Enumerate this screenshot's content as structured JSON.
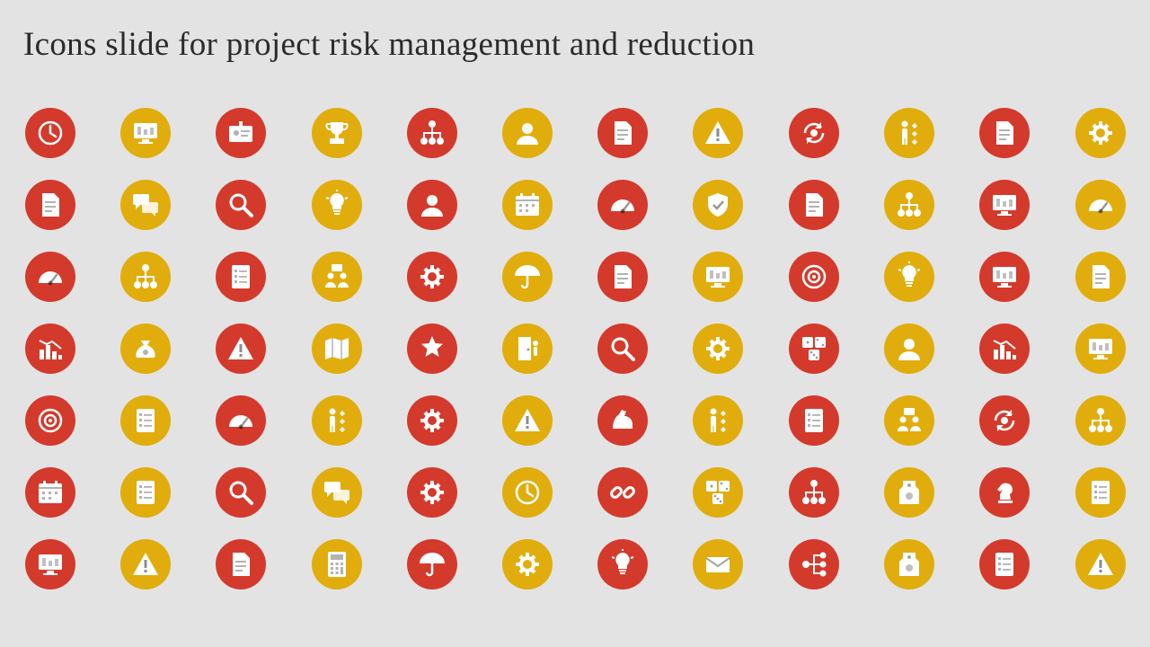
{
  "title": "Icons slide for project risk management and reduction",
  "colors": {
    "background": "#e3e3e3",
    "red": "#d33a2c",
    "yellow": "#e0ad0c",
    "glyph": "#ffffff"
  },
  "icons": [
    {
      "name": "clock-hourglass-icon",
      "color": "red",
      "glyph": "clock"
    },
    {
      "name": "monitor-dollar-chart-icon",
      "color": "yellow",
      "glyph": "monitor"
    },
    {
      "name": "id-card-icon",
      "color": "red",
      "glyph": "card"
    },
    {
      "name": "trophy-podium-icon",
      "color": "yellow",
      "glyph": "trophy"
    },
    {
      "name": "org-chart-icon",
      "color": "red",
      "glyph": "org"
    },
    {
      "name": "user-profile-icon",
      "color": "yellow",
      "glyph": "user"
    },
    {
      "name": "document-warning-icon",
      "color": "red",
      "glyph": "doc"
    },
    {
      "name": "warning-triangle-icon",
      "color": "yellow",
      "glyph": "warning"
    },
    {
      "name": "currency-exchange-icon",
      "color": "red",
      "glyph": "cycle"
    },
    {
      "name": "person-options-icon",
      "color": "yellow",
      "glyph": "person"
    },
    {
      "name": "stacked-documents-icon",
      "color": "red",
      "glyph": "doc"
    },
    {
      "name": "blueprint-gear-icon",
      "color": "yellow",
      "glyph": "gear"
    },
    {
      "name": "invoice-dollar-icon",
      "color": "red",
      "glyph": "doc"
    },
    {
      "name": "chat-bubbles-icon",
      "color": "yellow",
      "glyph": "chat"
    },
    {
      "name": "magnifier-analysis-icon",
      "color": "red",
      "glyph": "search"
    },
    {
      "name": "idea-presenter-icon",
      "color": "yellow",
      "glyph": "bulb"
    },
    {
      "name": "businessman-icon",
      "color": "red",
      "glyph": "user"
    },
    {
      "name": "calendar-schedule-icon",
      "color": "yellow",
      "glyph": "calendar"
    },
    {
      "name": "risk-gauge-icon",
      "color": "red",
      "glyph": "gauge"
    },
    {
      "name": "hazard-shield-icon",
      "color": "yellow",
      "glyph": "shield"
    },
    {
      "name": "process-document-icon",
      "color": "red",
      "glyph": "doc"
    },
    {
      "name": "person-hierarchy-icon",
      "color": "yellow",
      "glyph": "org"
    },
    {
      "name": "monitor-warning-icon",
      "color": "red",
      "glyph": "monitor"
    },
    {
      "name": "risk-meter-icon",
      "color": "yellow",
      "glyph": "gauge"
    },
    {
      "name": "speedometer-icon",
      "color": "red",
      "glyph": "gauge"
    },
    {
      "name": "network-nodes-icon",
      "color": "yellow",
      "glyph": "org"
    },
    {
      "name": "checklist-icon",
      "color": "red",
      "glyph": "list"
    },
    {
      "name": "team-meeting-icon",
      "color": "yellow",
      "glyph": "team"
    },
    {
      "name": "report-gear-icon",
      "color": "red",
      "glyph": "gear"
    },
    {
      "name": "umbrella-money-icon",
      "color": "yellow",
      "glyph": "umbrella"
    },
    {
      "name": "text-document-icon",
      "color": "red",
      "glyph": "doc"
    },
    {
      "name": "laptop-warning-icon",
      "color": "yellow",
      "glyph": "monitor"
    },
    {
      "name": "focus-arrows-icon",
      "color": "red",
      "glyph": "target"
    },
    {
      "name": "bulb-network-icon",
      "color": "yellow",
      "glyph": "bulb"
    },
    {
      "name": "browser-window-icon",
      "color": "red",
      "glyph": "monitor"
    },
    {
      "name": "code-document-icon",
      "color": "yellow",
      "glyph": "doc"
    },
    {
      "name": "declining-growth-icon",
      "color": "red",
      "glyph": "chart"
    },
    {
      "name": "money-bag-icon",
      "color": "yellow",
      "glyph": "bag"
    },
    {
      "name": "location-warning-icon",
      "color": "red",
      "glyph": "warning"
    },
    {
      "name": "map-location-icon",
      "color": "yellow",
      "glyph": "map"
    },
    {
      "name": "rating-thumbs-up-icon",
      "color": "red",
      "glyph": "star"
    },
    {
      "name": "exit-door-icon",
      "color": "yellow",
      "glyph": "door"
    },
    {
      "name": "document-review-icon",
      "color": "red",
      "glyph": "search"
    },
    {
      "name": "gears-cycle-icon",
      "color": "yellow",
      "glyph": "gear"
    },
    {
      "name": "dice-question-icon",
      "color": "red",
      "glyph": "dice"
    },
    {
      "name": "speaker-podium-icon",
      "color": "yellow",
      "glyph": "user"
    },
    {
      "name": "presentation-board-icon",
      "color": "red",
      "glyph": "chart"
    },
    {
      "name": "desktop-chart-icon",
      "color": "yellow",
      "glyph": "monitor"
    },
    {
      "name": "person-target-icon",
      "color": "red",
      "glyph": "target"
    },
    {
      "name": "clipboard-check-icon",
      "color": "yellow",
      "glyph": "list"
    },
    {
      "name": "gauge-warning-icon",
      "color": "red",
      "glyph": "gauge"
    },
    {
      "name": "decision-person-icon",
      "color": "yellow",
      "glyph": "person"
    },
    {
      "name": "gear-businessman-icon",
      "color": "red",
      "glyph": "gear"
    },
    {
      "name": "alert-scroll-icon",
      "color": "yellow",
      "glyph": "warning"
    },
    {
      "name": "strength-arm-icon",
      "color": "red",
      "glyph": "arm"
    },
    {
      "name": "thinking-person-icon",
      "color": "yellow",
      "glyph": "person"
    },
    {
      "name": "alert-checklist-icon",
      "color": "red",
      "glyph": "list"
    },
    {
      "name": "presenter-board-icon",
      "color": "yellow",
      "glyph": "team"
    },
    {
      "name": "risk-orbit-icon",
      "color": "red",
      "glyph": "cycle"
    },
    {
      "name": "people-network-icon",
      "color": "yellow",
      "glyph": "org"
    },
    {
      "name": "calendar-alert-icon",
      "color": "red",
      "glyph": "calendar"
    },
    {
      "name": "report-analytics-icon",
      "color": "yellow",
      "glyph": "list"
    },
    {
      "name": "clipboard-search-icon",
      "color": "red",
      "glyph": "search"
    },
    {
      "name": "team-discussion-icon",
      "color": "yellow",
      "glyph": "chat"
    },
    {
      "name": "user-warning-gear-icon",
      "color": "red",
      "glyph": "gear"
    },
    {
      "name": "timer-warning-icon",
      "color": "yellow",
      "glyph": "clock"
    },
    {
      "name": "broken-link-icon",
      "color": "red",
      "glyph": "link"
    },
    {
      "name": "question-dice-icon",
      "color": "yellow",
      "glyph": "dice"
    },
    {
      "name": "hierarchy-gears-icon",
      "color": "red",
      "glyph": "org"
    },
    {
      "name": "price-tag-icon",
      "color": "yellow",
      "glyph": "tag"
    },
    {
      "name": "chess-knight-alert-icon",
      "color": "red",
      "glyph": "chess"
    },
    {
      "name": "analytics-report-icon",
      "color": "yellow",
      "glyph": "list"
    },
    {
      "name": "user-dashboard-icon",
      "color": "red",
      "glyph": "monitor"
    },
    {
      "name": "hand-warning-icon",
      "color": "yellow",
      "glyph": "warning"
    },
    {
      "name": "rated-document-icon",
      "color": "red",
      "glyph": "doc"
    },
    {
      "name": "dollar-calculator-icon",
      "color": "yellow",
      "glyph": "calc"
    },
    {
      "name": "umbrella-alert-icon",
      "color": "red",
      "glyph": "umbrella"
    },
    {
      "name": "gear-warning-icon",
      "color": "yellow",
      "glyph": "gear"
    },
    {
      "name": "idea-gear-screen-icon",
      "color": "red",
      "glyph": "bulb"
    },
    {
      "name": "email-cycle-icon",
      "color": "yellow",
      "glyph": "mail"
    },
    {
      "name": "flow-branch-icon",
      "color": "red",
      "glyph": "branch"
    },
    {
      "name": "dollar-tag-icon",
      "color": "yellow",
      "glyph": "tag"
    },
    {
      "name": "checklist-approved-icon",
      "color": "red",
      "glyph": "list"
    },
    {
      "name": "hand-gear-warning-icon",
      "color": "yellow",
      "glyph": "warning"
    }
  ]
}
